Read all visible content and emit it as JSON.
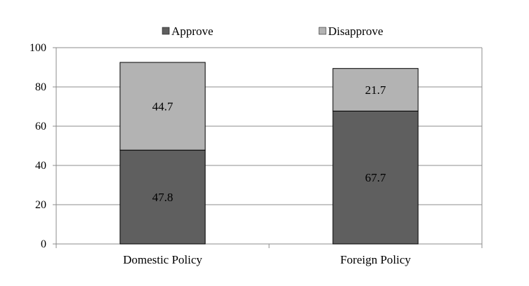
{
  "chart_data": {
    "type": "bar",
    "stacked": true,
    "categories": [
      "Domestic Policy",
      "Foreign Policy"
    ],
    "series": [
      {
        "name": "Approve",
        "values": [
          47.8,
          67.7
        ],
        "color": "#5f5f5f"
      },
      {
        "name": "Disapprove",
        "values": [
          44.7,
          21.7
        ],
        "color": "#b3b3b3"
      }
    ],
    "ylim": [
      0,
      100
    ],
    "yticks": [
      0,
      20,
      40,
      60,
      80,
      100
    ],
    "grid": true,
    "legend": "top-center",
    "title": "",
    "xlabel": "",
    "ylabel": ""
  }
}
